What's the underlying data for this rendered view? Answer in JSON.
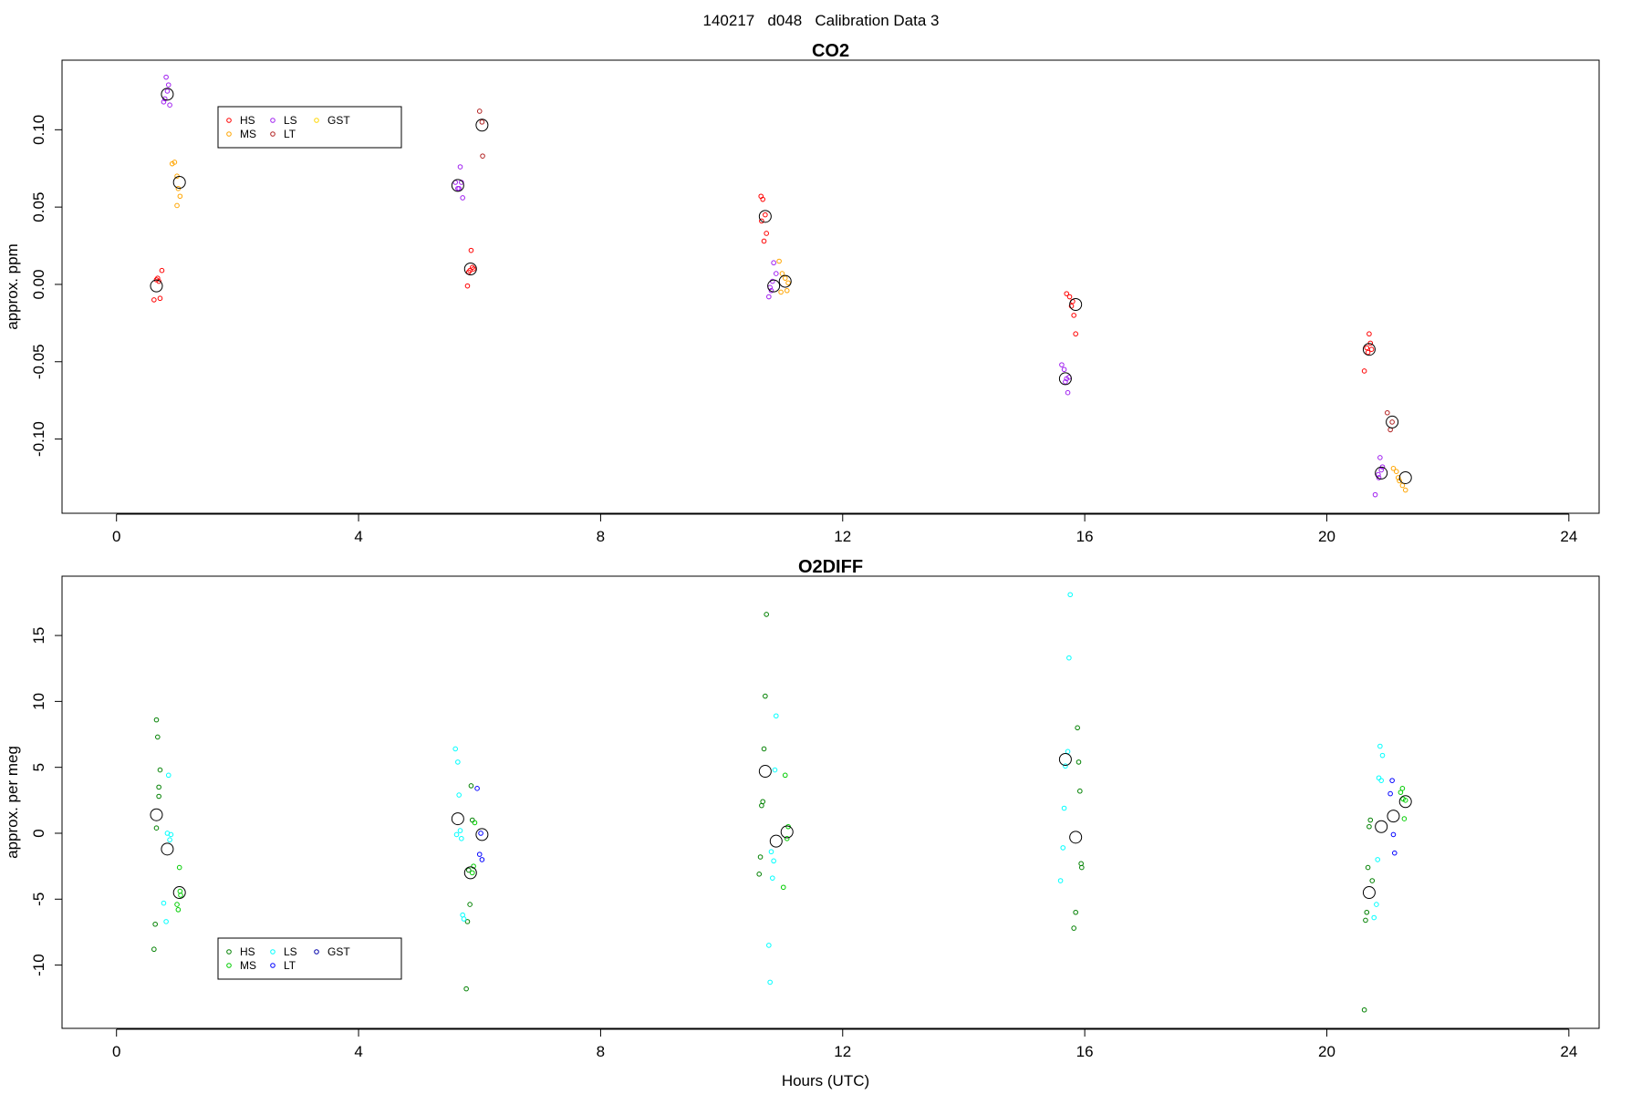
{
  "figure": {
    "title": "140217   d048   Calibration Data 3",
    "xlabel": "Hours (UTC)"
  },
  "chart_data": [
    {
      "type": "scatter",
      "title": "CO2",
      "xlabel": "",
      "ylabel": "approx. ppm",
      "xlim": [
        -0.9,
        24.5
      ],
      "ylim": [
        -0.148,
        0.145
      ],
      "xticks": [
        0,
        4,
        8,
        12,
        16,
        20,
        24
      ],
      "yticks": [
        -0.1,
        -0.05,
        0,
        0.05,
        0.1
      ],
      "ytick_labels": [
        "-0.10",
        "-0.05",
        "0.00",
        "0.05",
        "0.10"
      ],
      "legend": {
        "placement": "top-left",
        "entries": [
          {
            "label": "HS",
            "color": "#ff0000"
          },
          {
            "label": "MS",
            "color": "#ffa500"
          },
          {
            "label": "LS",
            "color": "#a020f0"
          },
          {
            "label": "LT",
            "color": "#b22222"
          },
          {
            "label": "GST",
            "color": "#ffd700"
          }
        ]
      },
      "series": [
        {
          "label_ref": "HS",
          "color": "#ff0000",
          "points": [
            [
              0.62,
              -0.01
            ],
            [
              0.68,
              0.004
            ],
            [
              0.7,
              0.002
            ],
            [
              0.72,
              -0.009
            ],
            [
              0.75,
              0.009
            ],
            [
              0.66,
              0.003
            ],
            [
              5.8,
              -0.001
            ],
            [
              5.86,
              0.022
            ],
            [
              5.88,
              0.011
            ],
            [
              5.84,
              0.009
            ],
            [
              5.9,
              0.01
            ],
            [
              5.82,
              0.008
            ],
            [
              10.65,
              0.057
            ],
            [
              10.68,
              0.055
            ],
            [
              10.72,
              0.045
            ],
            [
              10.74,
              0.033
            ],
            [
              10.7,
              0.028
            ],
            [
              10.66,
              0.041
            ],
            [
              15.7,
              -0.006
            ],
            [
              15.75,
              -0.008
            ],
            [
              15.8,
              -0.011
            ],
            [
              15.82,
              -0.02
            ],
            [
              15.85,
              -0.032
            ],
            [
              15.78,
              -0.014
            ],
            [
              20.62,
              -0.056
            ],
            [
              20.66,
              -0.041
            ],
            [
              20.7,
              -0.032
            ],
            [
              20.72,
              -0.038
            ],
            [
              20.68,
              -0.044
            ],
            [
              20.74,
              -0.042
            ]
          ]
        },
        {
          "label_ref": "MS",
          "color": "#ffa500",
          "points": [
            [
              0.92,
              0.078
            ],
            [
              0.96,
              0.079
            ],
            [
              1.0,
              0.07
            ],
            [
              1.02,
              0.062
            ],
            [
              1.05,
              0.057
            ],
            [
              1.0,
              0.051
            ],
            [
              10.95,
              0.015
            ],
            [
              11.0,
              0.007
            ],
            [
              11.05,
              0.004
            ],
            [
              11.08,
              -0.004
            ],
            [
              10.98,
              -0.005
            ],
            [
              11.1,
              0.001
            ],
            [
              21.1,
              -0.119
            ],
            [
              21.15,
              -0.121
            ],
            [
              21.2,
              -0.127
            ],
            [
              21.25,
              -0.13
            ],
            [
              21.3,
              -0.133
            ],
            [
              21.18,
              -0.125
            ]
          ]
        },
        {
          "label_ref": "LS",
          "color": "#a020f0",
          "points": [
            [
              0.78,
              0.118
            ],
            [
              0.8,
              0.12
            ],
            [
              0.84,
              0.125
            ],
            [
              0.86,
              0.129
            ],
            [
              0.82,
              0.134
            ],
            [
              0.88,
              0.116
            ],
            [
              5.6,
              0.066
            ],
            [
              5.64,
              0.062
            ],
            [
              5.68,
              0.076
            ],
            [
              5.72,
              0.056
            ],
            [
              5.66,
              0.062
            ],
            [
              5.7,
              0.066
            ],
            [
              10.78,
              -0.008
            ],
            [
              10.82,
              -0.004
            ],
            [
              10.86,
              0.014
            ],
            [
              10.9,
              0.007
            ],
            [
              10.84,
              0.002
            ],
            [
              10.8,
              -0.002
            ],
            [
              15.62,
              -0.052
            ],
            [
              15.66,
              -0.055
            ],
            [
              15.7,
              -0.061
            ],
            [
              15.72,
              -0.07
            ],
            [
              15.68,
              -0.063
            ],
            [
              15.74,
              -0.06
            ],
            [
              20.8,
              -0.136
            ],
            [
              20.85,
              -0.123
            ],
            [
              20.88,
              -0.112
            ],
            [
              20.92,
              -0.118
            ],
            [
              20.9,
              -0.12
            ],
            [
              20.86,
              -0.125
            ]
          ]
        },
        {
          "label_ref": "LT",
          "color": "#b22222",
          "points": [
            [
              6.0,
              0.112
            ],
            [
              6.04,
              0.105
            ],
            [
              6.05,
              0.083
            ],
            [
              21.0,
              -0.083
            ],
            [
              21.05,
              -0.094
            ],
            [
              21.08,
              -0.089
            ]
          ]
        }
      ],
      "means": [
        [
          0.66,
          -0.001
        ],
        [
          0.84,
          0.123
        ],
        [
          1.04,
          0.066
        ],
        [
          5.64,
          0.064
        ],
        [
          5.85,
          0.01
        ],
        [
          6.04,
          0.103
        ],
        [
          10.72,
          0.044
        ],
        [
          10.86,
          -0.001
        ],
        [
          11.05,
          0.002
        ],
        [
          15.68,
          -0.061
        ],
        [
          15.85,
          -0.013
        ],
        [
          20.7,
          -0.042
        ],
        [
          20.9,
          -0.122
        ],
        [
          21.08,
          -0.089
        ],
        [
          21.3,
          -0.125
        ]
      ]
    },
    {
      "type": "scatter",
      "title": "O2DIFF",
      "xlabel": "Hours (UTC)",
      "ylabel": "approx. per meg",
      "xlim": [
        -0.9,
        24.5
      ],
      "ylim": [
        -14.8,
        19.5
      ],
      "xticks": [
        0,
        4,
        8,
        12,
        16,
        20,
        24
      ],
      "yticks": [
        -10,
        -5,
        0,
        5,
        10,
        15
      ],
      "ytick_labels": [
        "-10",
        "-5",
        "0",
        "5",
        "10",
        "15"
      ],
      "legend": {
        "placement": "bottom-left",
        "entries": [
          {
            "label": "HS",
            "color": "#008000"
          },
          {
            "label": "MS",
            "color": "#00cc00"
          },
          {
            "label": "LS",
            "color": "#00ffff"
          },
          {
            "label": "LT",
            "color": "#0000ff"
          },
          {
            "label": "GST",
            "color": "#0000aa"
          }
        ]
      },
      "series": [
        {
          "label_ref": "HS",
          "color": "#008000",
          "points": [
            [
              0.62,
              -8.8
            ],
            [
              0.64,
              -6.9
            ],
            [
              0.66,
              8.6
            ],
            [
              0.68,
              7.3
            ],
            [
              0.7,
              3.5
            ],
            [
              0.72,
              4.8
            ],
            [
              0.7,
              2.8
            ],
            [
              0.66,
              0.4
            ],
            [
              5.78,
              -11.8
            ],
            [
              5.8,
              -6.7
            ],
            [
              5.84,
              -5.4
            ],
            [
              5.86,
              3.6
            ],
            [
              5.88,
              1.0
            ],
            [
              5.82,
              -2.8
            ],
            [
              10.62,
              -3.1
            ],
            [
              10.64,
              -1.8
            ],
            [
              10.66,
              2.1
            ],
            [
              10.68,
              2.4
            ],
            [
              10.7,
              6.4
            ],
            [
              10.72,
              10.4
            ],
            [
              10.74,
              16.6
            ],
            [
              15.82,
              -7.2
            ],
            [
              15.85,
              -6.0
            ],
            [
              15.88,
              8.0
            ],
            [
              15.9,
              5.4
            ],
            [
              15.92,
              3.2
            ],
            [
              15.94,
              -2.3
            ],
            [
              15.95,
              -2.6
            ],
            [
              20.62,
              -13.4
            ],
            [
              20.64,
              -6.6
            ],
            [
              20.66,
              -6.0
            ],
            [
              20.68,
              -2.6
            ],
            [
              20.72,
              1.0
            ],
            [
              20.75,
              -3.6
            ],
            [
              20.7,
              0.5
            ]
          ]
        },
        {
          "label_ref": "MS",
          "color": "#00cc00",
          "points": [
            [
              1.0,
              -5.4
            ],
            [
              1.02,
              -5.8
            ],
            [
              1.04,
              -2.6
            ],
            [
              1.06,
              -4.7
            ],
            [
              1.05,
              -4.4
            ],
            [
              5.9,
              -2.5
            ],
            [
              5.92,
              0.8
            ],
            [
              5.88,
              -3.0
            ],
            [
              11.02,
              -4.1
            ],
            [
              11.05,
              4.4
            ],
            [
              11.1,
              0.5
            ],
            [
              11.08,
              -0.4
            ],
            [
              21.22,
              3.1
            ],
            [
              21.25,
              3.4
            ],
            [
              21.28,
              1.1
            ],
            [
              21.3,
              2.5
            ],
            [
              21.26,
              2.6
            ]
          ]
        },
        {
          "label_ref": "LS",
          "color": "#00ffff",
          "points": [
            [
              0.78,
              -5.3
            ],
            [
              0.82,
              -6.7
            ],
            [
              0.86,
              4.4
            ],
            [
              0.84,
              0.0
            ],
            [
              0.9,
              -0.1
            ],
            [
              0.88,
              -0.5
            ],
            [
              5.6,
              6.4
            ],
            [
              5.64,
              5.4
            ],
            [
              5.66,
              2.9
            ],
            [
              5.68,
              0.2
            ],
            [
              5.7,
              -0.4
            ],
            [
              5.72,
              -6.2
            ],
            [
              5.74,
              -6.5
            ],
            [
              5.62,
              -0.1
            ],
            [
              10.78,
              -8.5
            ],
            [
              10.8,
              -11.3
            ],
            [
              10.84,
              -3.4
            ],
            [
              10.86,
              -2.1
            ],
            [
              10.88,
              4.8
            ],
            [
              10.9,
              8.9
            ],
            [
              10.82,
              -1.4
            ],
            [
              15.6,
              -3.6
            ],
            [
              15.64,
              -1.1
            ],
            [
              15.66,
              1.9
            ],
            [
              15.68,
              5.1
            ],
            [
              15.72,
              6.2
            ],
            [
              15.74,
              13.3
            ],
            [
              15.76,
              18.1
            ],
            [
              20.78,
              -6.4
            ],
            [
              20.82,
              -5.4
            ],
            [
              20.84,
              -2.0
            ],
            [
              20.86,
              4.2
            ],
            [
              20.88,
              6.6
            ],
            [
              20.92,
              5.9
            ],
            [
              20.9,
              4.0
            ]
          ]
        },
        {
          "label_ref": "LT",
          "color": "#0000ff",
          "points": [
            [
              5.96,
              3.4
            ],
            [
              6.0,
              -1.6
            ],
            [
              6.04,
              -2.0
            ],
            [
              6.02,
              0.0
            ],
            [
              21.05,
              3.0
            ],
            [
              21.08,
              4.0
            ],
            [
              21.1,
              -0.1
            ],
            [
              21.12,
              -1.5
            ]
          ]
        }
      ],
      "means": [
        [
          0.66,
          1.4
        ],
        [
          0.84,
          -1.2
        ],
        [
          1.04,
          -4.5
        ],
        [
          5.64,
          1.1
        ],
        [
          5.85,
          -3.0
        ],
        [
          6.04,
          -0.1
        ],
        [
          10.72,
          4.7
        ],
        [
          10.9,
          -0.6
        ],
        [
          11.08,
          0.1
        ],
        [
          15.68,
          5.6
        ],
        [
          15.85,
          -0.3
        ],
        [
          20.7,
          -4.5
        ],
        [
          20.9,
          0.5
        ],
        [
          21.1,
          1.3
        ],
        [
          21.3,
          2.4
        ]
      ]
    }
  ]
}
